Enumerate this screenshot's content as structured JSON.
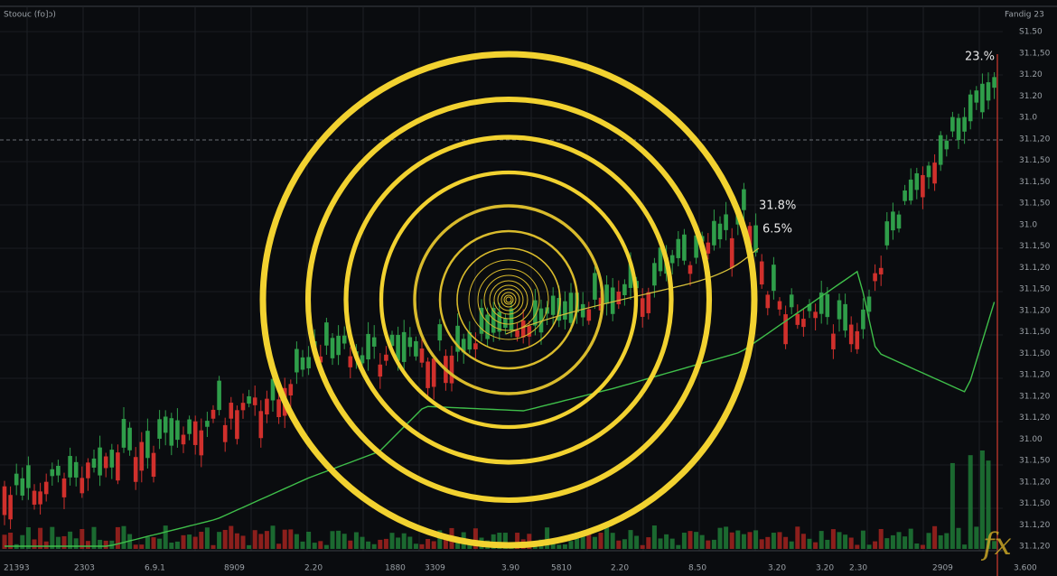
{
  "header": {
    "title": "Stoouc (fo]ɔ)",
    "right_label": "Fandig 23"
  },
  "annotations": [
    "23.%",
    "31.8%",
    "6.5%"
  ],
  "price_axis": [
    "S1.50",
    "31.1,50",
    "31.20",
    "31.20",
    "31.0",
    "31.1,20",
    "31.1,50",
    "31.1,50",
    "31.1,50",
    "31.0",
    "31.1,50",
    "31.1,20",
    "31.1,50",
    "31.1,20",
    "31.1,50",
    "31.1,50",
    "31.1,20",
    "31.1,20",
    "31.1,20",
    "31.00",
    "31.1,50",
    "31.1,20",
    "31.1,50",
    "31.1,20",
    "31.1,20"
  ],
  "time_axis": [
    "21393",
    "2303",
    "6.9.1",
    "8909",
    "2.20",
    "1880",
    "3309",
    "3.90",
    "5810",
    "2.20",
    "8.50",
    "3.20",
    "3.20",
    "2.30",
    "2909",
    "3.600"
  ],
  "watermark": "fx"
}
